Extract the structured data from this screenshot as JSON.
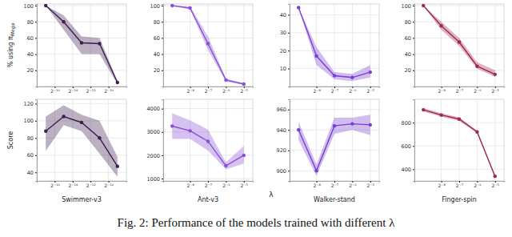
{
  "chart_data": [
    {
      "type": "line",
      "ylabel": "% using πMega",
      "x": [
        -17,
        -15,
        -13,
        -11,
        -9
      ],
      "xlim": [
        -18,
        -8
      ],
      "xticks": [
        {
          "value": -16,
          "label": "2⁻¹⁶"
        },
        {
          "value": -14,
          "label": "2⁻¹⁴"
        },
        {
          "value": -12,
          "label": "2⁻¹²"
        },
        {
          "value": -10,
          "label": "2⁻¹⁰"
        }
      ],
      "ylim": [
        0,
        102
      ],
      "yticks": [
        20,
        40,
        60,
        80,
        100
      ],
      "grid": true,
      "series": [
        {
          "color": "#3d1f4f",
          "marker": "o",
          "values": [
            100,
            80,
            54,
            53,
            5
          ],
          "lower": [
            100,
            70,
            40,
            40,
            3
          ],
          "upper": [
            100,
            88,
            62,
            60,
            7
          ]
        }
      ]
    },
    {
      "type": "line",
      "x": [
        -9,
        -8,
        -7,
        -6,
        -5
      ],
      "xlim": [
        -9.5,
        -4.5
      ],
      "xticks": [
        {
          "value": -8,
          "label": "2⁻⁸"
        },
        {
          "value": -7,
          "label": "2⁻⁷"
        },
        {
          "value": -6,
          "label": "2⁻⁶"
        },
        {
          "value": -5,
          "label": "2⁻⁵"
        }
      ],
      "ylim": [
        0,
        102
      ],
      "yticks": [
        20,
        40,
        60,
        80,
        100
      ],
      "grid": true,
      "series": [
        {
          "color": "#8a4fd8",
          "marker": "o",
          "values": [
            100,
            97,
            53,
            8,
            3
          ],
          "lower": [
            100,
            95,
            45,
            6,
            2
          ],
          "upper": [
            100,
            99,
            62,
            10,
            4
          ]
        }
      ]
    },
    {
      "type": "line",
      "x": [
        -9,
        -8,
        -7,
        -6,
        -5
      ],
      "xlim": [
        -9.5,
        -4.5
      ],
      "xticks": [
        {
          "value": -8,
          "label": "2⁻⁸"
        },
        {
          "value": -7,
          "label": "2⁻⁷"
        },
        {
          "value": -6,
          "label": "2⁻⁶"
        },
        {
          "value": -5,
          "label": "2⁻⁵"
        }
      ],
      "ylim": [
        0,
        46
      ],
      "yticks": [
        10,
        20,
        30,
        40
      ],
      "grid": true,
      "series": [
        {
          "color": "#7a3fd0",
          "marker": "o",
          "values": [
            44,
            17,
            6,
            5,
            8
          ],
          "lower": [
            44,
            12,
            4,
            3,
            5
          ],
          "upper": [
            44,
            22,
            8,
            7,
            12
          ]
        }
      ]
    },
    {
      "type": "line",
      "x": [
        -9,
        -8,
        -7,
        -6,
        -5
      ],
      "xlim": [
        -9.5,
        -4.5
      ],
      "xticks": [
        {
          "value": -8,
          "label": "2⁻⁸"
        },
        {
          "value": -7,
          "label": "2⁻⁷"
        },
        {
          "value": -6,
          "label": "2⁻⁶"
        },
        {
          "value": -5,
          "label": "2⁻⁵"
        }
      ],
      "ylim": [
        0,
        102
      ],
      "yticks": [
        20,
        40,
        60,
        80,
        100
      ],
      "grid": true,
      "series": [
        {
          "color": "#a0284f",
          "marker": "o",
          "values": [
            100,
            75,
            55,
            25,
            15
          ],
          "lower": [
            100,
            70,
            50,
            22,
            12
          ],
          "upper": [
            100,
            80,
            60,
            30,
            20
          ]
        }
      ]
    },
    {
      "type": "line",
      "ylabel": "Score",
      "xlabel": "Swimmer-v3",
      "x": [
        -17,
        -15,
        -13,
        -11,
        -9
      ],
      "xlim": [
        -18,
        -8
      ],
      "xticks": [
        {
          "value": -16,
          "label": "2⁻¹⁶"
        },
        {
          "value": -14,
          "label": "2⁻¹⁴"
        },
        {
          "value": -12,
          "label": "2⁻¹²"
        },
        {
          "value": -10,
          "label": "2⁻¹⁰"
        }
      ],
      "ylim": [
        30,
        125
      ],
      "yticks": [
        40,
        60,
        80,
        100,
        120
      ],
      "grid": true,
      "series": [
        {
          "color": "#3d1f4f",
          "marker": "o",
          "values": [
            88,
            105,
            98,
            80,
            47
          ],
          "lower": [
            65,
            95,
            88,
            62,
            35
          ],
          "upper": [
            105,
            118,
            107,
            100,
            58
          ]
        }
      ]
    },
    {
      "type": "line",
      "xlabel": "Ant-v3",
      "x": [
        -9,
        -8,
        -7,
        -6,
        -5
      ],
      "xlim": [
        -9.5,
        -4.5
      ],
      "xticks": [
        {
          "value": -8,
          "label": "2⁻⁸"
        },
        {
          "value": -7,
          "label": "2⁻⁷"
        },
        {
          "value": -6,
          "label": "2⁻⁶"
        },
        {
          "value": -5,
          "label": "2⁻⁵"
        }
      ],
      "ylim": [
        900,
        4400
      ],
      "yticks": [
        1000,
        2000,
        3000,
        4000
      ],
      "grid": true,
      "series": [
        {
          "color": "#8a4fd8",
          "marker": "o",
          "values": [
            3250,
            3050,
            2600,
            1550,
            2000
          ],
          "lower": [
            2700,
            2700,
            2200,
            1400,
            1650
          ],
          "upper": [
            3800,
            3500,
            3100,
            1700,
            2400
          ]
        }
      ]
    },
    {
      "type": "line",
      "xlabel": "Walker-stand",
      "x": [
        -9,
        -8,
        -7,
        -6,
        -5
      ],
      "xlim": [
        -9.5,
        -4.5
      ],
      "xticks": [
        {
          "value": -8,
          "label": "2⁻⁸"
        },
        {
          "value": -7,
          "label": "2⁻⁷"
        },
        {
          "value": -6,
          "label": "2⁻⁶"
        },
        {
          "value": -5,
          "label": "2⁻⁵"
        }
      ],
      "ylim": [
        890,
        970
      ],
      "yticks": [
        900,
        920,
        940,
        960
      ],
      "grid": true,
      "series": [
        {
          "color": "#7a3fd0",
          "marker": "o",
          "values": [
            940,
            900,
            944,
            946,
            945
          ],
          "lower": [
            930,
            895,
            936,
            940,
            935
          ],
          "upper": [
            948,
            906,
            952,
            952,
            955
          ]
        }
      ]
    },
    {
      "type": "line",
      "xlabel": "Finger-spin",
      "x": [
        -9,
        -8,
        -7,
        -6,
        -5
      ],
      "xlim": [
        -9.5,
        -4.5
      ],
      "xticks": [
        {
          "value": -8,
          "label": "2⁻⁸"
        },
        {
          "value": -7,
          "label": "2⁻⁷"
        },
        {
          "value": -6,
          "label": "2⁻⁶"
        },
        {
          "value": -5,
          "label": "2⁻⁵"
        }
      ],
      "ylim": [
        300,
        1000
      ],
      "yticks": [
        400,
        600,
        800
      ],
      "grid": true,
      "series": [
        {
          "color": "#a0284f",
          "marker": "o",
          "values": [
            910,
            865,
            830,
            720,
            340
          ],
          "lower": [
            895,
            850,
            815,
            710,
            330
          ],
          "upper": [
            925,
            880,
            845,
            730,
            350
          ]
        }
      ]
    }
  ],
  "xlabel": "λ",
  "caption": "Fig. 2: Performance of the models trained with different λ"
}
